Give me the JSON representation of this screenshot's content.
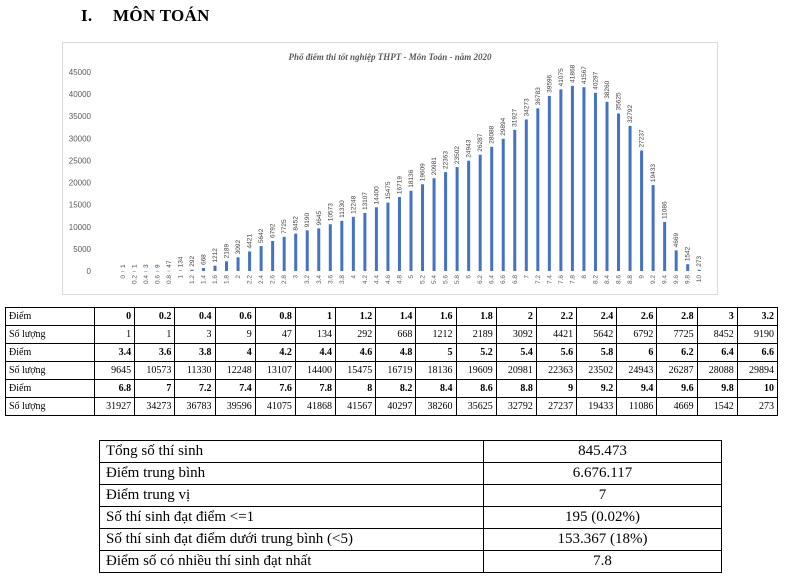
{
  "section": {
    "number": "I.",
    "title": "MÔN TOÁN"
  },
  "chart_data": {
    "type": "bar",
    "title": "Phổ điểm thi tốt nghiệp THPT - Môn Toán - năm 2020",
    "categories": [
      "0",
      "0.2",
      "0.4",
      "0.6",
      "0.8",
      "1",
      "1.2",
      "1.4",
      "1.6",
      "1.8",
      "2",
      "2.2",
      "2.4",
      "2.6",
      "2.8",
      "3",
      "3.2",
      "3.4",
      "3.6",
      "3.8",
      "4",
      "4.2",
      "4.4",
      "4.6",
      "4.8",
      "5",
      "5.2",
      "5.4",
      "5.6",
      "5.8",
      "6",
      "6.2",
      "6.4",
      "6.6",
      "6.8",
      "7",
      "7.2",
      "7.4",
      "7.6",
      "7.8",
      "8",
      "8.2",
      "8.4",
      "8.6",
      "8.8",
      "9",
      "9.2",
      "9.4",
      "9.6",
      "9.8",
      "10"
    ],
    "values": [
      1,
      1,
      3,
      9,
      47,
      134,
      292,
      668,
      1212,
      2189,
      3092,
      4421,
      5642,
      6792,
      7725,
      8452,
      9190,
      9645,
      10573,
      11330,
      12248,
      13107,
      14400,
      15475,
      16719,
      18136,
      19609,
      20981,
      22363,
      23502,
      24943,
      26287,
      28088,
      29894,
      31927,
      34273,
      36783,
      39596,
      41075,
      41868,
      41567,
      40297,
      38260,
      35625,
      32792,
      27237,
      19433,
      11086,
      4669,
      1542,
      273
    ],
    "y_ticks": [
      "0",
      "5000",
      "10000",
      "15000",
      "20000",
      "25000",
      "30000",
      "35000",
      "40000",
      "45000"
    ],
    "ylim": [
      0,
      45000
    ],
    "color": "#4472c4",
    "grid": false,
    "legend": "none"
  },
  "table": {
    "label_score": "Điểm",
    "label_count": "Số lượng"
  },
  "stats": [
    {
      "label": "Tổng số thí sinh",
      "value": "845.473"
    },
    {
      "label": "Điểm trung bình",
      "value": "6.676.117"
    },
    {
      "label": "Điểm trung vị",
      "value": "7"
    },
    {
      "label": "Số thí sinh đạt điểm <=1",
      "value": "195 (0.02%)"
    },
    {
      "label": "Số thí sinh đạt điểm dưới trung bình (<5)",
      "value": "153.367 (18%)"
    },
    {
      "label": "Điểm số có nhiều thí sinh đạt nhất",
      "value": "7.8"
    }
  ]
}
